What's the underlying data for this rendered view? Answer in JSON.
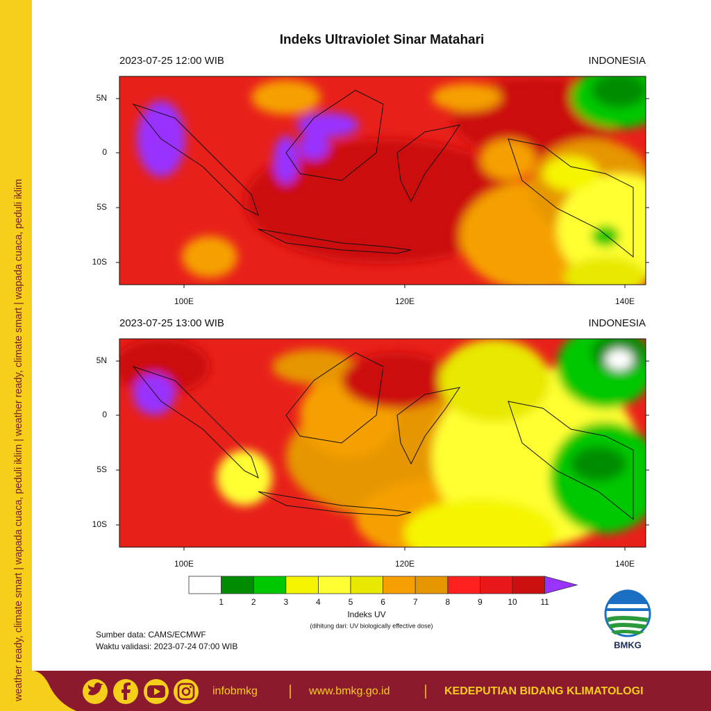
{
  "sidebar_text": "weather ready, climate smart | wapada cuaca, peduli iklim | weather ready, climate smart | wapada cuaca, peduli iklim",
  "title": "Indeks Ultraviolet Sinar Matahari",
  "panels": [
    {
      "time": "2023-07-25  12:00 WIB",
      "region": "INDONESIA"
    },
    {
      "time": "2023-07-25  13:00 WIB",
      "region": "INDONESIA"
    }
  ],
  "lat_labels": [
    "5N",
    "0",
    "5S",
    "10S"
  ],
  "lon_labels": [
    "100E",
    "120E",
    "140E"
  ],
  "legend": {
    "ticks": [
      1,
      2,
      3,
      4,
      5,
      6,
      7,
      8,
      9,
      10,
      11
    ],
    "colors": [
      "#ffffff",
      "#008c00",
      "#00c800",
      "#f5f500",
      "#ffff33",
      "#e8e800",
      "#f5a000",
      "#e69600",
      "#ff2020",
      "#e81818",
      "#cc1010",
      "#9933ff"
    ],
    "title": "Indeks UV",
    "subtitle": "(dihitung dari: UV biologically effective dose)"
  },
  "source": "Sumber data: CAMS/ECMWF",
  "validity": "Waktu validasi: 2023-07-24 07:00 WIB",
  "logo_text": "BMKG",
  "footer": {
    "handle": "infobmkg",
    "website": "www.bmkg.go.id",
    "department": "KEDEPUTIAN BIDANG KLIMATOLOGI"
  }
}
